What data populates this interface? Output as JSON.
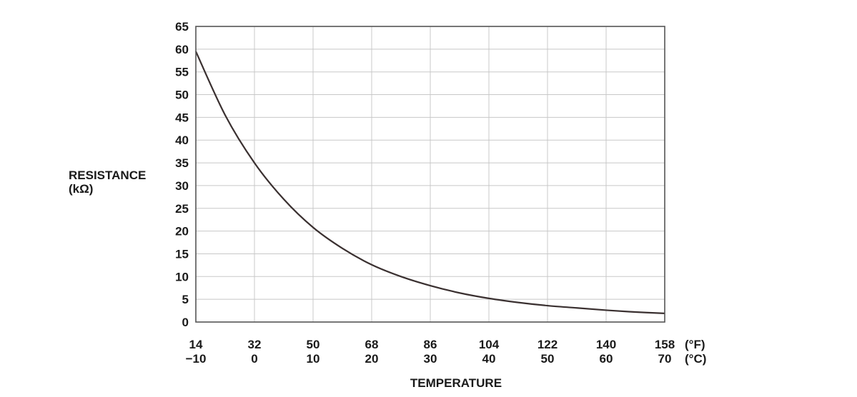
{
  "chart_data": {
    "type": "line",
    "ylabel_line1": "RESISTANCE",
    "ylabel_line2": "(kΩ)",
    "xlabel": "TEMPERATURE",
    "x_unit_f": "(°F)",
    "x_unit_c": "(°C)",
    "xlim": [
      -10,
      70
    ],
    "ylim": [
      0,
      65
    ],
    "grid": true,
    "y_ticks": [
      0,
      5,
      10,
      15,
      20,
      25,
      30,
      35,
      40,
      45,
      50,
      55,
      60,
      65
    ],
    "x_ticks_c": [
      -10,
      0,
      10,
      20,
      30,
      40,
      50,
      60,
      70
    ],
    "x_tick_labels_f": [
      "14",
      "32",
      "50",
      "68",
      "86",
      "104",
      "122",
      "140",
      "158"
    ],
    "x_tick_labels_c": [
      "−10",
      "0",
      "10",
      "20",
      "30",
      "40",
      "50",
      "60",
      "70"
    ],
    "line_color": "#3a3030",
    "series": [
      {
        "x": [
          -10,
          -5,
          0,
          5,
          10,
          15,
          20,
          25,
          30,
          35,
          40,
          45,
          50,
          55,
          60,
          65,
          70
        ],
        "y": [
          59.5,
          45.5,
          35.0,
          27.0,
          20.8,
          16.2,
          12.6,
          10.0,
          8.0,
          6.4,
          5.2,
          4.3,
          3.6,
          3.1,
          2.6,
          2.2,
          1.9
        ]
      }
    ]
  }
}
